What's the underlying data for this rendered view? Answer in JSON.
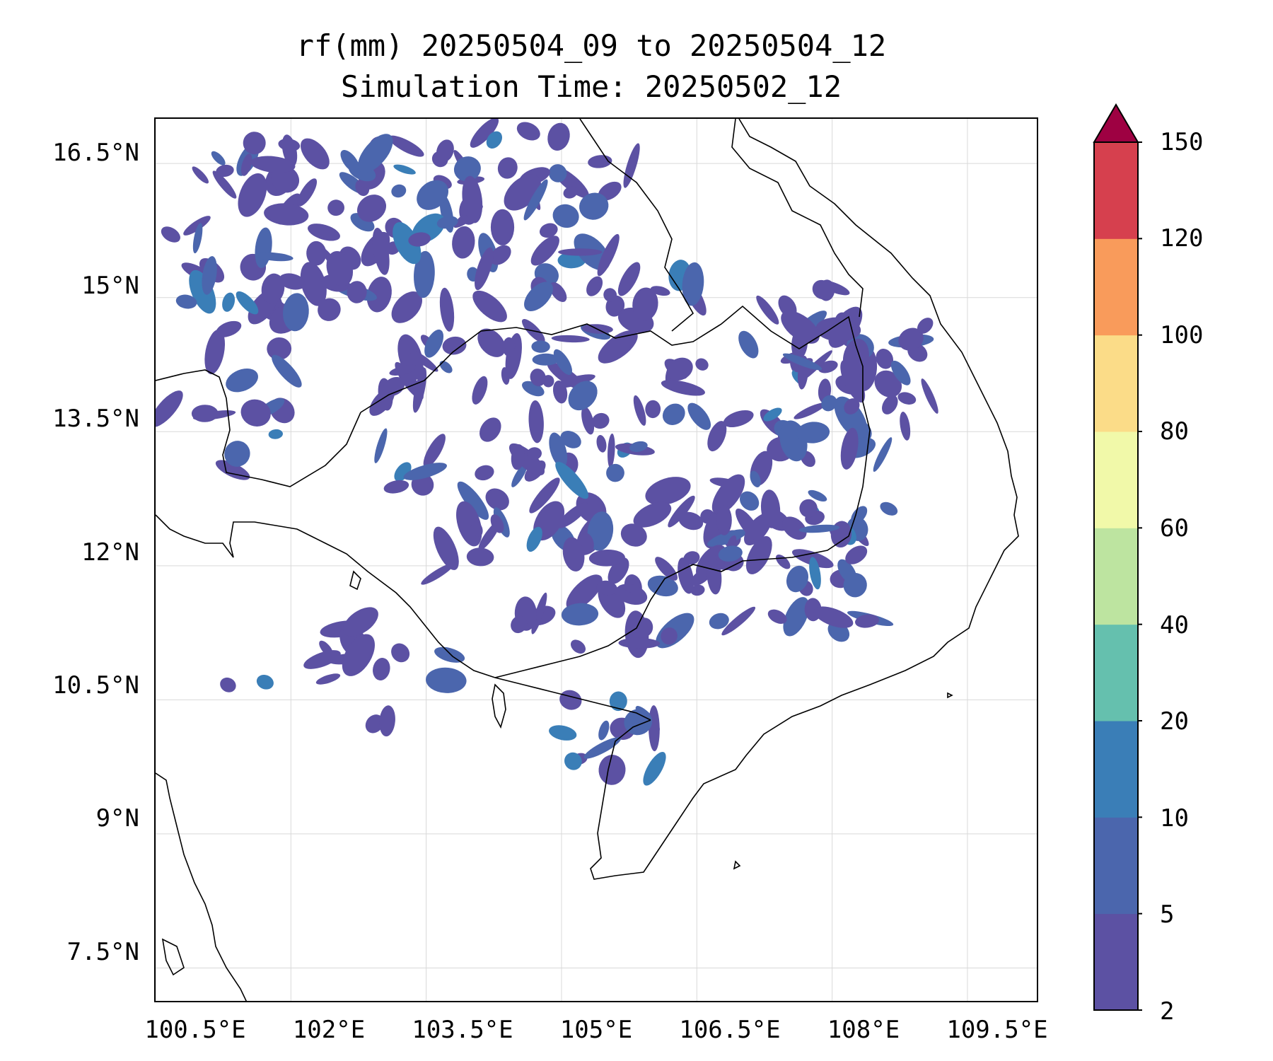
{
  "title": {
    "line1": "rf(mm) 20250504_09 to 20250504_12",
    "line2": "Simulation Time: 20250502_12"
  },
  "axes": {
    "lat_labels": [
      "16.5°N",
      "15°N",
      "13.5°N",
      "12°N",
      "10.5°N",
      "9°N",
      "7.5°N"
    ],
    "lon_labels": [
      "100.5°E",
      "102°E",
      "103.5°E",
      "105°E",
      "106.5°E",
      "108°E",
      "109.5°E"
    ],
    "lat_values": [
      16.5,
      15,
      13.5,
      12,
      10.5,
      9,
      7.5
    ],
    "lon_values": [
      100.5,
      102,
      103.5,
      105,
      106.5,
      108,
      109.5
    ],
    "xlim": [
      100.5,
      110.3
    ],
    "ylim": [
      7.1,
      17.0
    ],
    "grid": true
  },
  "colorbar": {
    "labels": [
      "2",
      "5",
      "10",
      "20",
      "40",
      "60",
      "80",
      "100",
      "120",
      "150"
    ],
    "colors": [
      "#5c51a3",
      "#4b66ad",
      "#3a7eb7",
      "#65c0ae",
      "#bde4a0",
      "#f1f9a9",
      "#fbdc88",
      "#f99b5b",
      "#d6404e",
      "#9e0142"
    ],
    "extend": "max"
  },
  "map": {
    "variable": "rf(mm)",
    "region": "Cambodia / southern Indochina",
    "rain_color_light": "#5c51a3",
    "rain_color_mid": "#4b66ad",
    "rain_color_strong": "#3a7eb7",
    "coast_color": "#000000"
  }
}
